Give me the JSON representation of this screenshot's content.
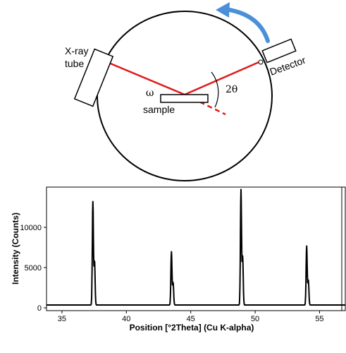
{
  "diagram": {
    "labels": {
      "xray_line1": "X-ray",
      "xray_line2": "tube",
      "detector": "Detector",
      "omega": "ω",
      "sample": "sample",
      "two_theta": "2θ"
    },
    "colors": {
      "beam": "#e01a1a",
      "arrow": "#4a90d9",
      "outline": "#000000"
    }
  },
  "chart_data": {
    "type": "line",
    "title": "",
    "xlabel": "Position [°2Theta] (Cu K-alpha)",
    "ylabel": "Intensity (Counts)",
    "xlim": [
      33.8,
      57.0
    ],
    "ylim": [
      0,
      15000
    ],
    "x_ticks": [
      35,
      40,
      45,
      50,
      55
    ],
    "y_ticks": [
      0,
      5000,
      10000
    ],
    "grid": false,
    "legend": "none",
    "line_color": "#000000",
    "baseline": 350,
    "peaks": [
      {
        "x": 37.4,
        "y": 12800
      },
      {
        "x": 43.5,
        "y": 6600
      },
      {
        "x": 48.9,
        "y": 14300
      },
      {
        "x": 54.0,
        "y": 7300
      }
    ]
  }
}
